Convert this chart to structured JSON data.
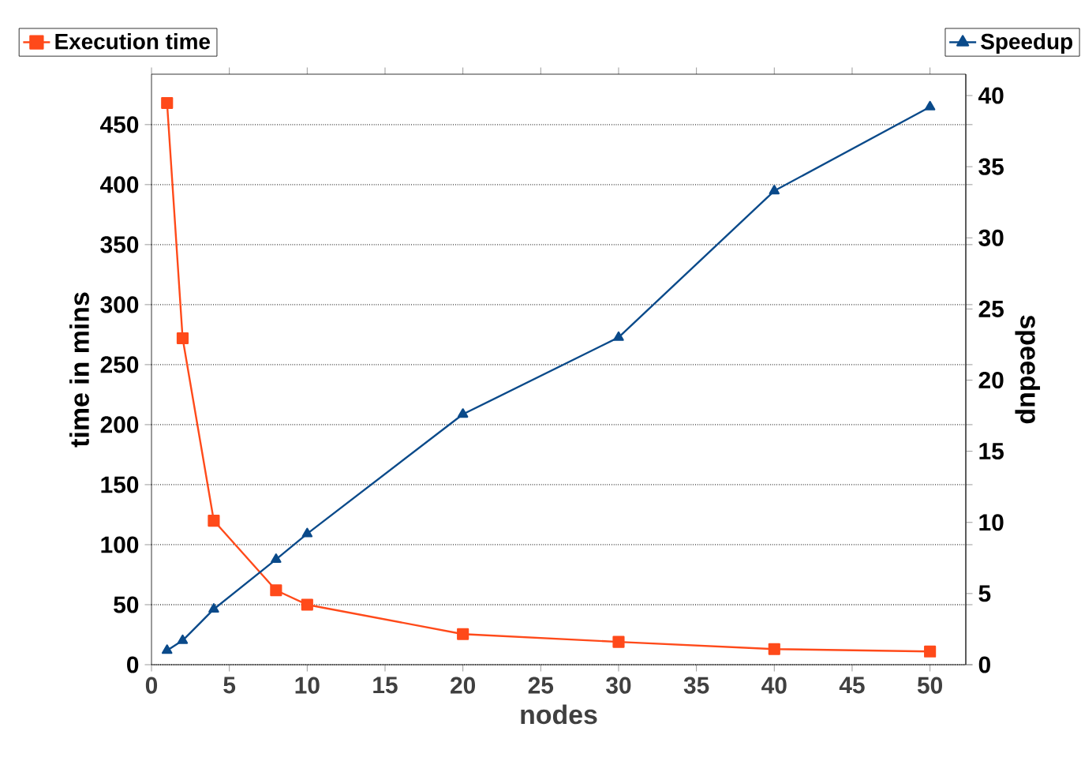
{
  "chart_data": {
    "type": "line",
    "xlabel": "nodes",
    "ylabel": "time in mins",
    "y2label": "speedup",
    "x": [
      1,
      2,
      4,
      8,
      10,
      20,
      30,
      40,
      50
    ],
    "series": [
      {
        "name": "Execution time",
        "color": "#ff4a1a",
        "marker": "square",
        "values": [
          468,
          272,
          120,
          62,
          50,
          25.5,
          19,
          13,
          11
        ]
      },
      {
        "name": "Speedup",
        "color": "#0a4a8a",
        "marker": "triangle",
        "axis": "y2",
        "values": [
          1,
          1.7,
          3.9,
          7.4,
          9.2,
          17.6,
          23.0,
          33.3,
          39.2
        ]
      }
    ],
    "xlim": [
      0,
      52.3
    ],
    "ylim": [
      0,
      492
    ],
    "y2lim": [
      0,
      41.5
    ],
    "xticks": [
      0,
      5,
      10,
      15,
      20,
      25,
      30,
      35,
      40,
      45,
      50
    ],
    "yticks": [
      0,
      50,
      100,
      150,
      200,
      250,
      300,
      350,
      400,
      450
    ],
    "y2ticks": [
      0,
      5,
      10,
      15,
      20,
      25,
      30,
      35,
      40
    ],
    "grid": "y",
    "legend": "top",
    "line_style": "solid"
  }
}
